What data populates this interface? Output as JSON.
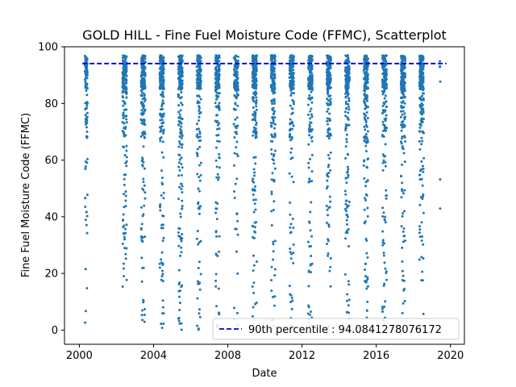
{
  "chart_data": {
    "type": "scatter",
    "title": "GOLD HILL - Fine Fuel Moisture Code (FFMC), Scatterplot",
    "xlabel": "Date",
    "ylabel": "Fine Fuel Moisture Code (FFMC)",
    "xlim": [
      "1999-03-15",
      "2020-10-01"
    ],
    "ylim": [
      -5,
      100
    ],
    "x_ticks": [
      "2000",
      "2004",
      "2008",
      "2012",
      "2016",
      "2020"
    ],
    "y_ticks": [
      0,
      20,
      40,
      60,
      80,
      100
    ],
    "grid": false,
    "legend_position": "lower-right",
    "colors": {
      "points": "#1f77b4",
      "threshold": "#0000cc"
    },
    "reference_line": {
      "label": "90th percentile : 94.0841278076172",
      "value": 94.0841278076172,
      "x_start": "2000-03-01",
      "x_end": "2019-10-15"
    },
    "seasons": [
      {
        "start": "2000-04-20",
        "end": "2000-07-20",
        "n": 110
      },
      {
        "start": "2002-05-01",
        "end": "2002-10-01",
        "n": 200
      },
      {
        "start": "2003-05-01",
        "end": "2003-10-01",
        "n": 200
      },
      {
        "start": "2004-05-01",
        "end": "2004-10-01",
        "n": 200
      },
      {
        "start": "2005-05-01",
        "end": "2005-10-01",
        "n": 190
      },
      {
        "start": "2006-05-01",
        "end": "2006-10-01",
        "n": 170
      },
      {
        "start": "2007-05-01",
        "end": "2007-10-01",
        "n": 180
      },
      {
        "start": "2008-05-01",
        "end": "2008-10-01",
        "n": 130
      },
      {
        "start": "2009-05-01",
        "end": "2009-10-01",
        "n": 200
      },
      {
        "start": "2010-05-01",
        "end": "2010-10-01",
        "n": 180
      },
      {
        "start": "2011-05-01",
        "end": "2011-10-01",
        "n": 160
      },
      {
        "start": "2012-05-01",
        "end": "2012-10-01",
        "n": 170
      },
      {
        "start": "2013-05-01",
        "end": "2013-10-01",
        "n": 180
      },
      {
        "start": "2014-05-01",
        "end": "2014-10-01",
        "n": 190
      },
      {
        "start": "2015-05-01",
        "end": "2015-10-01",
        "n": 200
      },
      {
        "start": "2016-05-01",
        "end": "2016-10-01",
        "n": 180
      },
      {
        "start": "2017-05-01",
        "end": "2017-10-01",
        "n": 190
      },
      {
        "start": "2018-05-01",
        "end": "2018-10-01",
        "n": 190
      },
      {
        "start": "2019-06-01",
        "end": "2019-06-25",
        "n": 6
      }
    ]
  }
}
